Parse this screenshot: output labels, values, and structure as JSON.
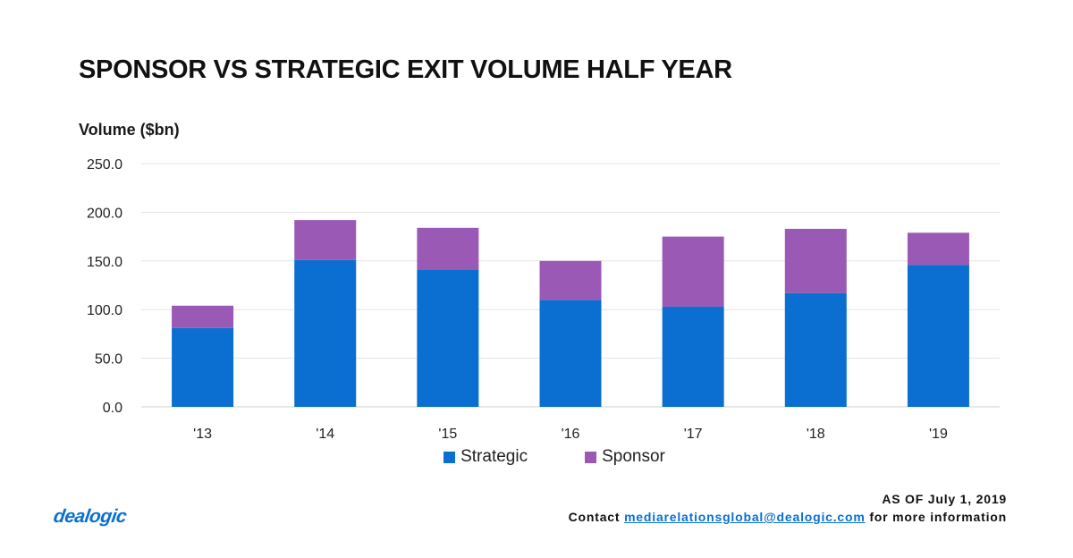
{
  "chart_data": {
    "type": "bar",
    "stacked": true,
    "title": "SPONSOR VS STRATEGIC EXIT VOLUME HALF YEAR",
    "ylabel": "Volume ($bn)",
    "xlabel": "",
    "categories": [
      "'13",
      "'14",
      "'15",
      "'16",
      "'17",
      "'18",
      "'19"
    ],
    "series": [
      {
        "name": "Strategic",
        "color": "#0a6fd1",
        "values": [
          81,
          151,
          141,
          110,
          103,
          117,
          146
        ]
      },
      {
        "name": "Sponsor",
        "color": "#9b59b6",
        "values": [
          23,
          41,
          43,
          40,
          72,
          66,
          33
        ]
      }
    ],
    "ylim": [
      0,
      250
    ],
    "yticks": [
      "0.0",
      "50.0",
      "100.0",
      "150.0",
      "200.0",
      "250.0"
    ],
    "grid": true,
    "legend": "bottom-center"
  },
  "footer": {
    "as_of": "AS OF July 1, 2019",
    "contact_prefix": "Contact",
    "email": "mediarelationsglobal@dealogic.com",
    "contact_suffix": "for more information"
  },
  "logo": {
    "text": "dealogic",
    "color": "#0a6fd1"
  }
}
